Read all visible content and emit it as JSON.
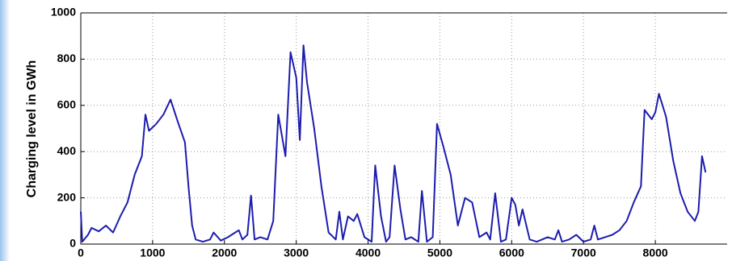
{
  "chart_data": {
    "type": "line",
    "ylabel": "Charging level in GWh",
    "x": [
      0,
      20,
      100,
      150,
      250,
      350,
      450,
      550,
      650,
      750,
      850,
      900,
      950,
      1050,
      1150,
      1250,
      1350,
      1450,
      1500,
      1550,
      1600,
      1700,
      1800,
      1850,
      1950,
      2050,
      2150,
      2200,
      2250,
      2320,
      2370,
      2420,
      2500,
      2600,
      2680,
      2750,
      2850,
      2920,
      3000,
      3050,
      3100,
      3150,
      3250,
      3350,
      3450,
      3550,
      3600,
      3650,
      3720,
      3800,
      3850,
      3950,
      4050,
      4100,
      4180,
      4250,
      4300,
      4370,
      4450,
      4520,
      4600,
      4700,
      4750,
      4820,
      4900,
      4960,
      5050,
      5150,
      5250,
      5350,
      5450,
      5550,
      5650,
      5700,
      5770,
      5850,
      5920,
      6000,
      6050,
      6100,
      6150,
      6250,
      6350,
      6500,
      6600,
      6650,
      6700,
      6800,
      6900,
      7000,
      7100,
      7150,
      7200,
      7300,
      7400,
      7500,
      7600,
      7700,
      7800,
      7850,
      7950,
      8000,
      8050,
      8150,
      8250,
      8350,
      8450,
      8550,
      8600,
      8650,
      8700
    ],
    "series": [
      {
        "color": "#1c1cae",
        "values": [
          140,
          10,
          40,
          70,
          55,
          80,
          50,
          120,
          180,
          300,
          380,
          560,
          490,
          520,
          560,
          625,
          530,
          440,
          250,
          80,
          20,
          10,
          20,
          50,
          15,
          30,
          50,
          60,
          20,
          40,
          210,
          20,
          30,
          20,
          100,
          560,
          380,
          830,
          720,
          450,
          860,
          700,
          500,
          250,
          50,
          20,
          140,
          20,
          120,
          100,
          130,
          30,
          10,
          340,
          120,
          10,
          30,
          340,
          150,
          20,
          30,
          10,
          230,
          10,
          30,
          520,
          420,
          300,
          80,
          200,
          180,
          30,
          50,
          20,
          220,
          10,
          20,
          200,
          170,
          80,
          150,
          20,
          10,
          30,
          20,
          60,
          10,
          20,
          40,
          10,
          20,
          80,
          20,
          30,
          40,
          60,
          100,
          180,
          250,
          580,
          540,
          570,
          650,
          550,
          360,
          220,
          140,
          100,
          140,
          380,
          310
        ]
      }
    ],
    "xlim": [
      0,
      9000
    ],
    "xticks": [
      0,
      1000,
      2000,
      3000,
      4000,
      5000,
      6000,
      7000,
      8000
    ],
    "ylim": [
      0,
      1000
    ],
    "yticks": [
      0,
      200,
      400,
      600,
      800,
      1000
    ],
    "grid": true
  }
}
